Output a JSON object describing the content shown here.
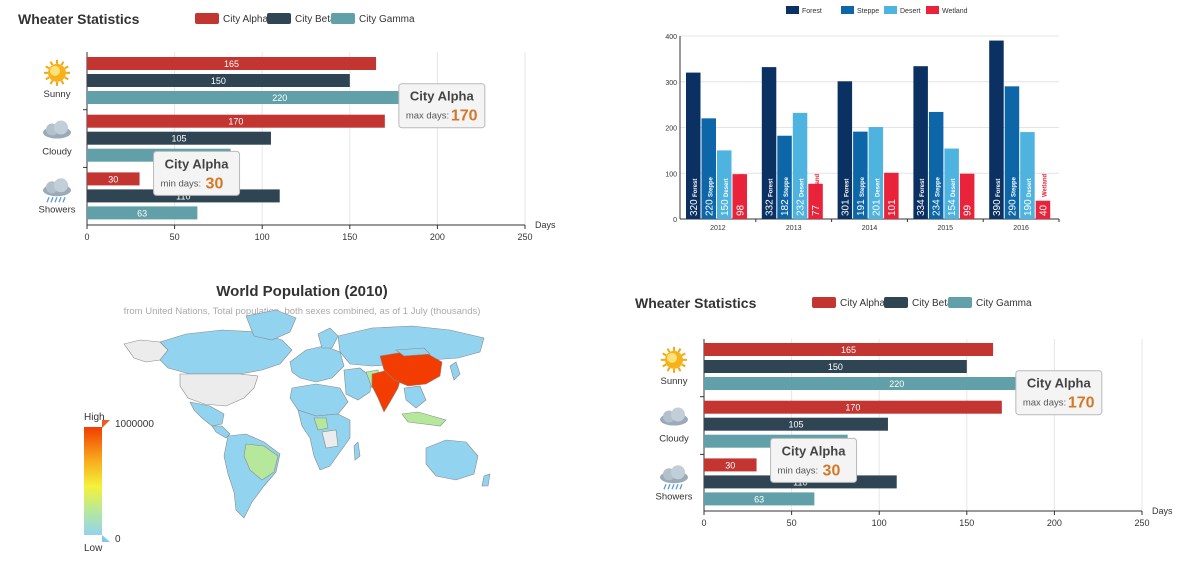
{
  "colors": {
    "alpha": "#c23531",
    "beta": "#2f4554",
    "gamma": "#61a0a8",
    "forest": "#0b3163",
    "steppe": "#0d66a8",
    "desert": "#4fb3e0",
    "wetland": "#e8233a",
    "tip_value": "#d47826"
  },
  "chart_data": [
    {
      "type": "bar",
      "orientation": "horizontal",
      "title": "Wheater Statistics",
      "categories": [
        "Sunny",
        "Cloudy",
        "Showers"
      ],
      "series": [
        {
          "name": "City Alpha",
          "values": [
            165,
            170,
            30
          ]
        },
        {
          "name": "City Beta",
          "values": [
            150,
            105,
            110
          ]
        },
        {
          "name": "City Gamma",
          "values": [
            220,
            82,
            63
          ]
        }
      ],
      "category_icons": [
        "sun-icon",
        "cloud-icon",
        "showers-icon"
      ],
      "xlabel": "Days",
      "xlim": [
        0,
        250
      ],
      "xticks": [
        0,
        50,
        100,
        150,
        200,
        250
      ],
      "legend_position": "top",
      "grid": true,
      "annotations": [
        {
          "title": "City Alpha",
          "label": "max days:",
          "value": 170
        },
        {
          "title": "City Alpha",
          "label": "min days:",
          "value": 30
        }
      ]
    },
    {
      "type": "bar",
      "categories": [
        "2012",
        "2013",
        "2014",
        "2015",
        "2016"
      ],
      "series": [
        {
          "name": "Forest",
          "values": [
            320,
            332,
            301,
            334,
            390
          ]
        },
        {
          "name": "Steppe",
          "values": [
            220,
            182,
            191,
            234,
            290
          ]
        },
        {
          "name": "Desert",
          "values": [
            150,
            232,
            201,
            154,
            190
          ]
        },
        {
          "name": "Wetland",
          "values": [
            98,
            77,
            101,
            99,
            40
          ]
        }
      ],
      "ylim": [
        0,
        400
      ],
      "yticks": [
        0,
        100,
        200,
        300,
        400
      ],
      "legend_position": "top",
      "grid": true,
      "bar_labels": "value and series name, rotated vertical"
    },
    {
      "type": "heatmap",
      "subtype": "choropleth-map",
      "title": "World Population (2010)",
      "subtitle": "from United Nations, Total population, both sexes combined, as of 1 July (thousands)",
      "visual_map": {
        "min": 0,
        "max": 1000000,
        "min_label": "0",
        "max_label": "1000000",
        "high_text": "High",
        "low_text": "Low"
      },
      "highlights": [
        {
          "region": "China",
          "level": "High"
        },
        {
          "region": "India",
          "level": "High"
        }
      ]
    },
    {
      "type": "bar",
      "orientation": "horizontal",
      "title": "Wheater Statistics",
      "categories": [
        "Sunny",
        "Cloudy",
        "Showers"
      ],
      "series": [
        {
          "name": "City Alpha",
          "values": [
            165,
            170,
            30
          ]
        },
        {
          "name": "City Beta",
          "values": [
            150,
            105,
            110
          ]
        },
        {
          "name": "City Gamma",
          "values": [
            220,
            82,
            63
          ]
        }
      ],
      "category_icons": [
        "sun-icon",
        "cloud-icon",
        "showers-icon"
      ],
      "xlabel": "Days",
      "xlim": [
        0,
        250
      ],
      "xticks": [
        0,
        50,
        100,
        150,
        200,
        250
      ],
      "legend_position": "top",
      "grid": true,
      "annotations": [
        {
          "title": "City Alpha",
          "label": "max days:",
          "value": 170
        },
        {
          "title": "City Alpha",
          "label": "min days:",
          "value": 30
        }
      ]
    }
  ]
}
